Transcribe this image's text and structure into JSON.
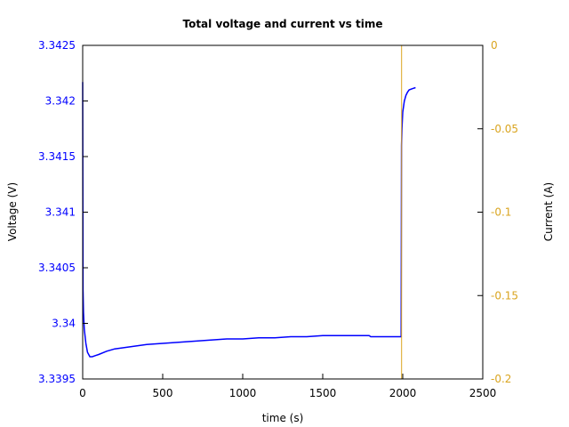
{
  "chart_data": {
    "type": "line",
    "title": "Total voltage and current vs time",
    "xlabel": "time (s)",
    "ylabel": "Voltage (V)",
    "y2label": "Current (A)",
    "xlim": [
      0,
      2500
    ],
    "ylim": [
      3.3395,
      3.3425
    ],
    "y2lim": [
      -0.2,
      0
    ],
    "x_ticks": [
      "0",
      "500",
      "1000",
      "1500",
      "2000",
      "2500"
    ],
    "y_ticks": [
      "3.3395",
      "3.34",
      "3.3405",
      "3.341",
      "3.3415",
      "3.342",
      "3.3425"
    ],
    "y2_ticks": [
      "-0.2",
      "-0.15",
      "-0.1",
      "-0.05",
      "0"
    ],
    "grid": false,
    "legend": null,
    "series": [
      {
        "name": "Voltage",
        "axis": "left",
        "color": "#0000ff",
        "x": [
          0,
          2,
          5,
          10,
          20,
          30,
          45,
          60,
          80,
          100,
          150,
          200,
          300,
          400,
          500,
          600,
          700,
          800,
          900,
          1000,
          1100,
          1200,
          1300,
          1400,
          1500,
          1600,
          1700,
          1790,
          1800,
          1900,
          1990,
          1992,
          1995,
          2000,
          2010,
          2020,
          2030,
          2040,
          2060,
          2080
        ],
        "y": [
          3.34217,
          3.3403,
          3.3401,
          3.33995,
          3.33982,
          3.33974,
          3.3397,
          3.3397,
          3.33971,
          3.33972,
          3.33975,
          3.33977,
          3.33979,
          3.33981,
          3.33982,
          3.33983,
          3.33984,
          3.33985,
          3.33986,
          3.33986,
          3.33987,
          3.33987,
          3.33988,
          3.33988,
          3.33989,
          3.33989,
          3.33989,
          3.33989,
          3.33988,
          3.33988,
          3.33988,
          3.3416,
          3.34175,
          3.3419,
          3.342,
          3.34205,
          3.34208,
          3.3421,
          3.34211,
          3.34212
        ]
      },
      {
        "name": "Current",
        "axis": "right",
        "color": "#daa520",
        "x": [
          1993,
          1993
        ],
        "y": [
          -0.2,
          0
        ]
      }
    ]
  },
  "colors": {
    "voltage": "#0000ff",
    "current": "#daa520",
    "axes": "#000000"
  }
}
